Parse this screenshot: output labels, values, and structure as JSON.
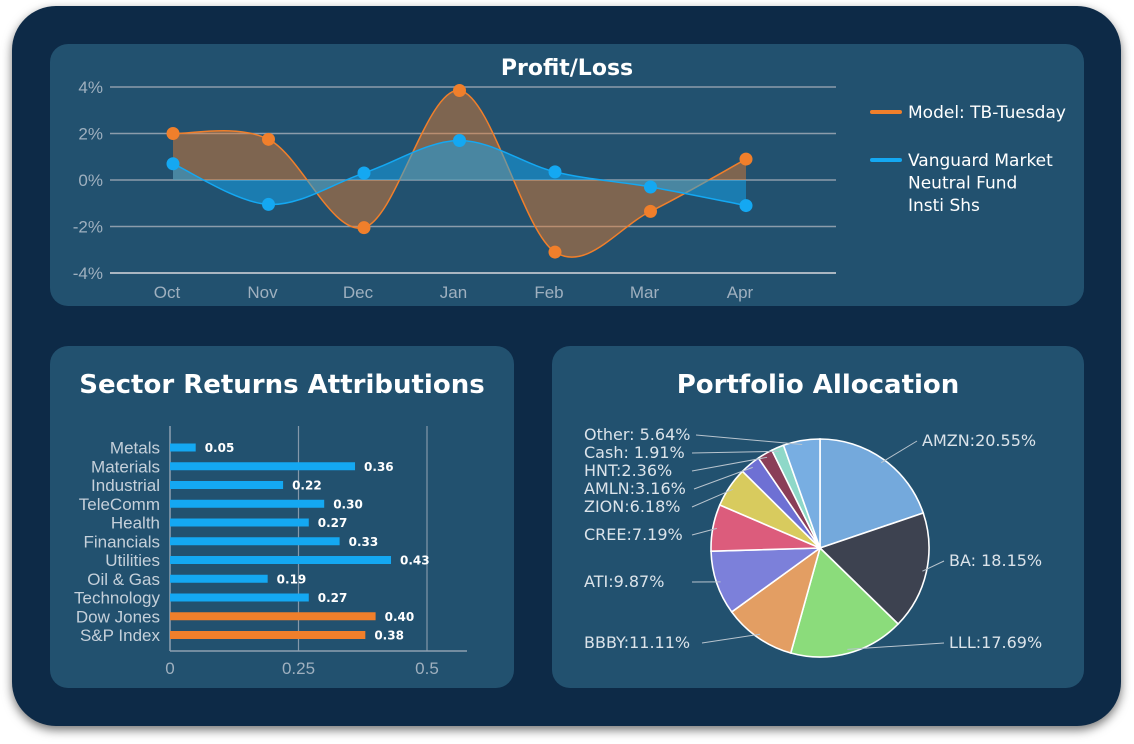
{
  "colors": {
    "background": "#0d2a47",
    "panel": "#22516f",
    "model": "#f07f2b",
    "vanguard": "#14a8f2",
    "sector_bar": "#14a8f2",
    "benchmark_bar": "#f07f2b"
  },
  "profit_loss": {
    "title": "Profit/Loss",
    "chart_data": {
      "type": "line",
      "title": "Profit/Loss",
      "categories": [
        "Oct",
        "Nov",
        "Dec",
        "Jan",
        "Feb",
        "Mar",
        "Apr"
      ],
      "yticks": [
        "4%",
        "2%",
        "0%",
        "-2%",
        "-4%"
      ],
      "ylim": [
        -4,
        4
      ],
      "series": [
        {
          "name": "Model: TB-Tuesday",
          "values": [
            2.0,
            1.75,
            -2.05,
            3.85,
            -3.1,
            -1.35,
            0.9
          ]
        },
        {
          "name": "Vanguard Market Neutral Fund Insti Shs",
          "values": [
            0.7,
            -1.05,
            0.3,
            1.7,
            0.35,
            -0.3,
            -1.1
          ]
        }
      ],
      "legend_position": "right",
      "grid": true
    },
    "legend": [
      {
        "label_lines": [
          "Model: TB-Tuesday"
        ]
      },
      {
        "label_lines": [
          "Vanguard Market",
          "Neutral Fund",
          "Insti Shs"
        ]
      }
    ]
  },
  "sector": {
    "title": "Sector Returns Attributions",
    "chart_data": {
      "type": "bar",
      "orientation": "horizontal",
      "title": "Sector Returns Attributions",
      "categories": [
        "Metals",
        "Materials",
        "Industrial",
        "TeleComm",
        "Health",
        "Financials",
        "Utilities",
        "Oil & Gas",
        "Technology",
        "Dow Jones",
        "S&P Index"
      ],
      "values": [
        0.05,
        0.36,
        0.22,
        0.3,
        0.27,
        0.33,
        0.43,
        0.19,
        0.27,
        0.4,
        0.38
      ],
      "value_labels": [
        "0.05",
        "0.36",
        "0.22",
        "0.30",
        "0.27",
        "0.33",
        "0.43",
        "0.19",
        "0.27",
        "0.40",
        "0.38"
      ],
      "highlight": [
        false,
        false,
        false,
        false,
        false,
        false,
        false,
        false,
        false,
        true,
        true
      ],
      "xticks": [
        "0",
        "0.25",
        "0.5"
      ],
      "xlim": [
        0,
        0.58
      ],
      "grid": true
    }
  },
  "allocation": {
    "title": "Portfolio Allocation",
    "chart_data": {
      "type": "pie",
      "title": "Portfolio Allocation",
      "slices": [
        {
          "label": "AMZN:20.55%",
          "value": 20.55,
          "color": "#74a9dc"
        },
        {
          "label": "BA: 18.15%",
          "value": 18.15,
          "color": "#3d4250"
        },
        {
          "label": "LLL:17.69%",
          "value": 17.69,
          "color": "#8bdc7b"
        },
        {
          "label": "BBBY:11.11%",
          "value": 11.11,
          "color": "#e39e63"
        },
        {
          "label": "ATI:9.87%",
          "value": 9.87,
          "color": "#7c80da"
        },
        {
          "label": "CREE:7.19%",
          "value": 7.19,
          "color": "#dc5c7c"
        },
        {
          "label": "ZION:6.18%",
          "value": 6.18,
          "color": "#d8cb5e"
        },
        {
          "label": "AMLN:3.16%",
          "value": 3.16,
          "color": "#6e70d4"
        },
        {
          "label": "HNT:2.36%",
          "value": 2.36,
          "color": "#8a3e58"
        },
        {
          "label": "Cash: 1.91%",
          "value": 1.91,
          "color": "#8ed8c8"
        },
        {
          "label": "Other: 5.64%",
          "value": 5.64,
          "color": "#78aee2"
        }
      ]
    }
  }
}
